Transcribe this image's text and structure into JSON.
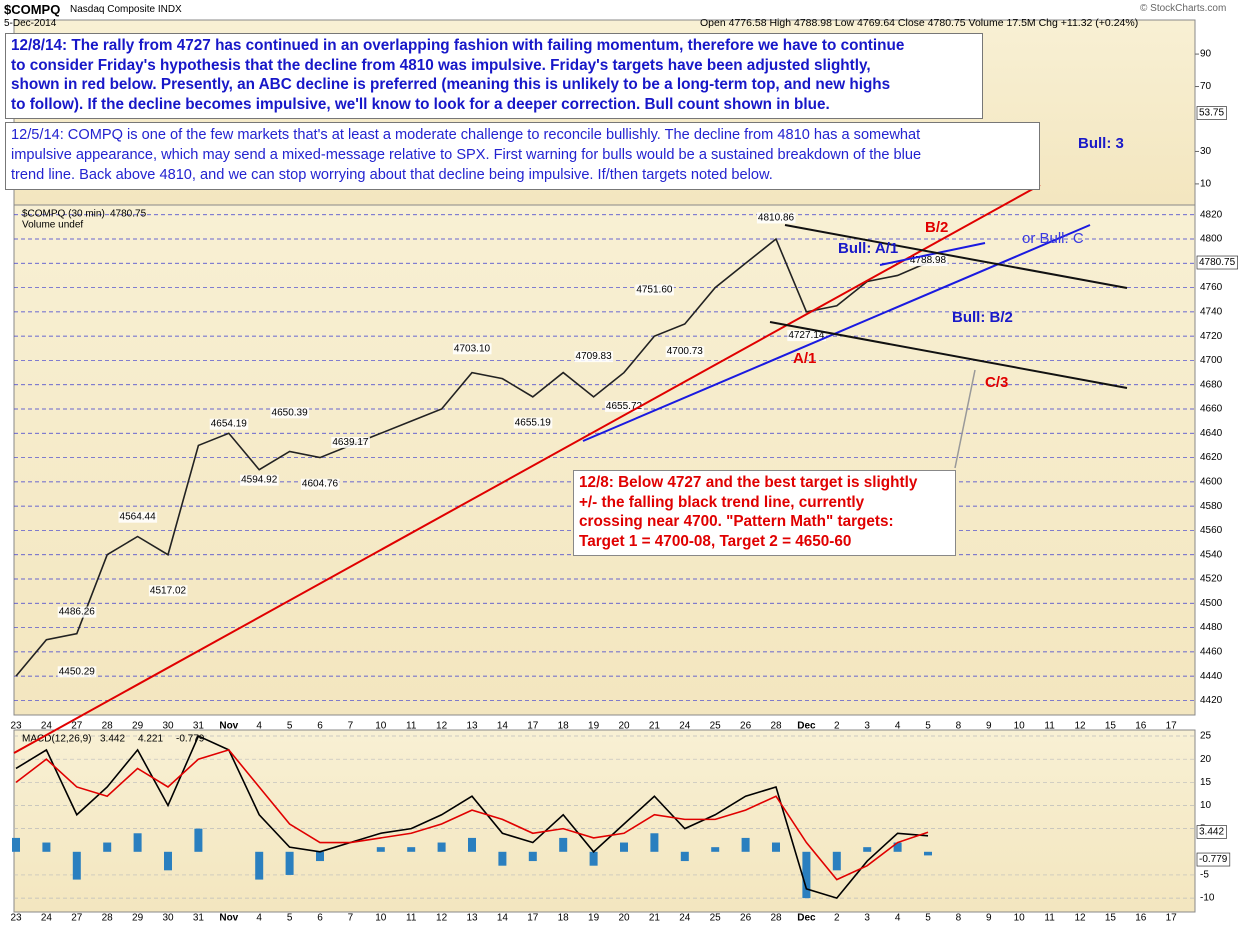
{
  "header": {
    "symbol": "$COMPQ",
    "name": "Nasdaq Composite INDX",
    "date": "5-Dec-2014",
    "quote": "Open 4776.58  High 4788.98  Low 4769.64  Close 4780.75  Volume 17.5M  Chg +11.32 (+0.24%)",
    "credit": "© StockCharts.com"
  },
  "notes": {
    "note_1208": [
      "12/8/14:  The rally from 4727 has continued in an overlapping fashion with failing momentum, therefore we have to continue",
      "to consider Friday's hypothesis that the decline from 4810 was impulsive.  Friday's targets have been adjusted slightly,",
      "shown in red below.  Presently, an ABC decline is preferred (meaning this is unlikely to be a long-term top, and new highs",
      "to follow).  If the decline becomes impulsive, we'll know to look for a deeper correction.  Bull count shown in blue."
    ],
    "note_1205": [
      "12/5/14:  COMPQ is one of the few markets that's at least a moderate challenge to reconcile bullishly.  The decline from 4810 has a somewhat",
      "impulsive appearance, which may send a mixed-message relative to SPX.  First warning for bulls would be a sustained breakdown of the blue",
      "trend line.  Back above 4810, and we can stop worrying about that decline being impulsive.  If/then targets noted below."
    ],
    "note_target": [
      "12/8:  Below 4727 and the best target is slightly",
      "+/- the falling black trend line, currently",
      "crossing near 4700.  \"Pattern Math\" targets:",
      "Target 1 = 4700-08, Target 2 = 4650-60"
    ]
  },
  "chart_data": [
    {
      "type": "line",
      "legend_symbol": "$COMPQ (30 min)",
      "legend_volume": "Volume undef",
      "categories": [
        "23",
        "24",
        "27",
        "28",
        "29",
        "30",
        "31",
        "Nov",
        "4",
        "5",
        "6",
        "7",
        "10",
        "11",
        "12",
        "13",
        "14",
        "17",
        "18",
        "19",
        "20",
        "21",
        "24",
        "25",
        "26",
        "28",
        "Dec",
        "2",
        "3",
        "4",
        "5",
        "8",
        "9",
        "10",
        "11",
        "12",
        "15",
        "16",
        "17"
      ],
      "series": [
        {
          "color": "#222222",
          "values": [
            4440,
            4470,
            4475,
            4540,
            4555,
            4540,
            4630,
            4640,
            4610,
            4625,
            4620,
            4630,
            4640,
            4650,
            4660,
            4690,
            4685,
            4670,
            4690,
            4670,
            4690,
            4720,
            4730,
            4760,
            4780,
            4800,
            4740,
            4745,
            4765,
            4770,
            4780.75,
            null,
            null,
            null,
            null,
            null,
            null,
            null,
            null
          ]
        }
      ],
      "ylim": [
        4408,
        4828
      ],
      "yticks": [
        4420,
        4440,
        4460,
        4480,
        4500,
        4520,
        4540,
        4560,
        4580,
        4600,
        4620,
        4640,
        4660,
        4680,
        4700,
        4720,
        4740,
        4760,
        4780,
        4800,
        4820
      ],
      "grid": true,
      "point_labels": [
        {
          "label": "4810.86",
          "value": 4810.86,
          "index": 25
        },
        {
          "label": "4788.98",
          "value": 4788.98,
          "index": 30
        },
        {
          "label": "4751.60",
          "value": 4751.6,
          "index": 21
        },
        {
          "label": "4727.14",
          "value": 4727.14,
          "index": 26
        },
        {
          "label": "4700.73",
          "value": 4700.73,
          "index": 22
        },
        {
          "label": "4709.83",
          "value": 4709.83,
          "index": 19
        },
        {
          "label": "4703.10",
          "value": 4703.1,
          "index": 15
        },
        {
          "label": "4655.19",
          "value": 4655.19,
          "index": 17
        },
        {
          "label": "4655.72",
          "value": 4655.72,
          "index": 20
        },
        {
          "label": "4654.19",
          "value": 4654.19,
          "index": 7
        },
        {
          "label": "4650.39",
          "value": 4650.39,
          "index": 9
        },
        {
          "label": "4639.17",
          "value": 4639.17,
          "index": 11
        },
        {
          "label": "4594.92",
          "value": 4594.92,
          "index": 8
        },
        {
          "label": "4604.76",
          "value": 4604.76,
          "index": 10
        },
        {
          "label": "4564.44",
          "value": 4564.44,
          "index": 4
        },
        {
          "label": "4517.02",
          "value": 4517.02,
          "index": 5
        },
        {
          "label": "4486.26",
          "value": 4486.26,
          "index": 2
        },
        {
          "label": "4450.29",
          "value": 4450.29,
          "index": 2
        }
      ],
      "annotations": [
        "Bull: 3",
        "B/2",
        "Bull: A/1",
        "or Bull: C",
        "Bull: B/2",
        "A/1",
        "C/3"
      ]
    },
    {
      "type": "line",
      "legend": "MACD(12,26,9)",
      "categories": [
        "23",
        "24",
        "27",
        "28",
        "29",
        "30",
        "31",
        "Nov",
        "4",
        "5",
        "6",
        "7",
        "10",
        "11",
        "12",
        "13",
        "14",
        "17",
        "18",
        "19",
        "20",
        "21",
        "24",
        "25",
        "26",
        "28",
        "Dec",
        "2",
        "3",
        "4",
        "5",
        "8",
        "9",
        "10",
        "11",
        "12",
        "15",
        "16",
        "17"
      ],
      "series": [
        {
          "color": "#000000",
          "values": [
            18,
            22,
            8,
            14,
            22,
            10,
            25,
            22,
            8,
            1,
            0,
            2,
            4,
            5,
            8,
            12,
            4,
            2,
            8,
            0,
            6,
            12,
            5,
            8,
            12,
            14,
            -8,
            -10,
            -2,
            4,
            3.442,
            null,
            null,
            null,
            null,
            null,
            null,
            null,
            null
          ]
        },
        {
          "color": "#e00000",
          "values": [
            15,
            20,
            14,
            12,
            18,
            14,
            20,
            22,
            14,
            6,
            2,
            2,
            3,
            4,
            6,
            9,
            7,
            4,
            5,
            3,
            4,
            8,
            7,
            7,
            9,
            12,
            2,
            -6,
            -3,
            2,
            4.221,
            null,
            null,
            null,
            null,
            null,
            null,
            null,
            null
          ]
        },
        {
          "type": "bar",
          "color": "#2a7fbf",
          "values": [
            3,
            2,
            -6,
            2,
            4,
            -4,
            5,
            0,
            -6,
            -5,
            -2,
            0,
            1,
            1,
            2,
            3,
            -3,
            -2,
            3,
            -3,
            2,
            4,
            -2,
            1,
            3,
            2,
            -10,
            -4,
            1,
            2,
            -0.779,
            null,
            null,
            null,
            null,
            null,
            null,
            null,
            null
          ]
        }
      ],
      "ylim": [
        -13,
        26.3
      ],
      "yticks": [
        -10,
        -5,
        5,
        10,
        15,
        20,
        25
      ],
      "grid": true
    },
    {
      "type": "line",
      "ylim": [
        -3,
        111
      ],
      "yticks": [
        10,
        30,
        70,
        90
      ],
      "last_value": 53.75
    }
  ]
}
